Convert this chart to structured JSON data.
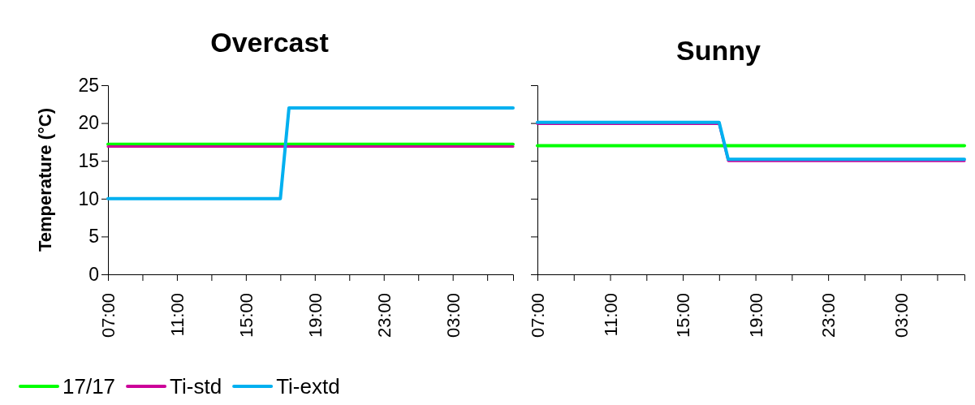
{
  "chart_data": [
    {
      "type": "line",
      "title": "Overcast",
      "ylabel": "Temperature (°C)",
      "categories": [
        "07:00",
        null,
        null,
        null,
        null,
        null,
        null,
        null,
        "11:00",
        null,
        null,
        null,
        null,
        null,
        null,
        null,
        "15:00",
        null,
        null,
        null,
        null,
        null,
        null,
        null,
        "19:00",
        null,
        null,
        null,
        null,
        null,
        null,
        null,
        "23:00",
        null,
        null,
        null,
        null,
        null,
        null,
        null,
        "03:00",
        null,
        null,
        null,
        null,
        null,
        null,
        null
      ],
      "ylim": [
        0,
        25
      ],
      "yticks": [
        0,
        5,
        10,
        15,
        20,
        25
      ],
      "legend": "bottom",
      "series": [
        {
          "name": "17/17",
          "color": "#00ff00",
          "values": [
            17.2,
            17.2,
            17.2,
            17.2,
            17.2,
            17.2,
            17.2,
            17.2,
            17.2,
            17.2,
            17.2,
            17.2,
            17.2,
            17.2,
            17.2,
            17.2,
            17.2,
            17.2,
            17.2,
            17.2,
            17.2,
            17.2,
            17.2,
            17.2,
            17.2,
            17.2,
            17.2,
            17.2,
            17.2,
            17.2,
            17.2,
            17.2,
            17.2,
            17.2,
            17.2,
            17.2,
            17.2,
            17.2,
            17.2,
            17.2,
            17.2,
            17.2,
            17.2,
            17.2,
            17.2,
            17.2,
            17.2,
            17.2
          ]
        },
        {
          "name": "Ti-std",
          "color": "#cc0099",
          "values": [
            16.9,
            16.9,
            16.9,
            16.9,
            16.9,
            16.9,
            16.9,
            16.9,
            16.9,
            16.9,
            16.9,
            16.9,
            16.9,
            16.9,
            16.9,
            16.9,
            16.9,
            16.9,
            16.9,
            16.9,
            16.9,
            16.9,
            16.9,
            16.9,
            16.9,
            16.9,
            16.9,
            16.9,
            16.9,
            16.9,
            16.9,
            16.9,
            16.9,
            16.9,
            16.9,
            16.9,
            16.9,
            16.9,
            16.9,
            16.9,
            16.9,
            16.9,
            16.9,
            16.9,
            16.9,
            16.9,
            16.9,
            16.9
          ]
        },
        {
          "name": "Ti-extd",
          "color": "#00b0f0",
          "values": [
            10,
            10,
            10,
            10,
            10,
            10,
            10,
            10,
            10,
            10,
            10,
            10,
            10,
            10,
            10,
            10,
            10,
            10,
            10,
            10,
            10,
            22,
            22,
            22,
            22,
            22,
            22,
            22,
            22,
            22,
            22,
            22,
            22,
            22,
            22,
            22,
            22,
            22,
            22,
            22,
            22,
            22,
            22,
            22,
            22,
            22,
            22,
            22
          ]
        }
      ]
    },
    {
      "type": "line",
      "title": "Sunny",
      "categories": [
        "07:00",
        null,
        null,
        null,
        null,
        null,
        null,
        null,
        "11:00",
        null,
        null,
        null,
        null,
        null,
        null,
        null,
        "15:00",
        null,
        null,
        null,
        null,
        null,
        null,
        null,
        "19:00",
        null,
        null,
        null,
        null,
        null,
        null,
        null,
        "23:00",
        null,
        null,
        null,
        null,
        null,
        null,
        null,
        "03:00",
        null,
        null,
        null,
        null,
        null,
        null,
        null
      ],
      "ylim": [
        0,
        25
      ],
      "yticks": [
        0,
        5,
        10,
        15,
        20,
        25
      ],
      "tick_labels": "x",
      "series": [
        {
          "color": "#00ff00",
          "values": [
            17,
            17,
            17,
            17,
            17,
            17,
            17,
            17,
            17,
            17,
            17,
            17,
            17,
            17,
            17,
            17,
            17,
            17,
            17,
            17,
            17,
            17,
            17,
            17,
            17,
            17,
            17,
            17,
            17,
            17,
            17,
            17,
            17,
            17,
            17,
            17,
            17,
            17,
            17,
            17,
            17,
            17,
            17,
            17,
            17,
            17,
            17,
            17
          ]
        },
        {
          "color": "#cc0099",
          "values": [
            19.9,
            19.9,
            19.9,
            19.9,
            19.9,
            19.9,
            19.9,
            19.9,
            19.9,
            19.9,
            19.9,
            19.9,
            19.9,
            19.9,
            19.9,
            19.9,
            19.9,
            19.9,
            19.9,
            19.9,
            19.9,
            15,
            15,
            15,
            15,
            15,
            15,
            15,
            15,
            15,
            15,
            15,
            15,
            15,
            15,
            15,
            15,
            15,
            15,
            15,
            15,
            15,
            15,
            15,
            15,
            15,
            15,
            15
          ]
        },
        {
          "color": "#00b0f0",
          "values": [
            20.1,
            20.1,
            20.1,
            20.1,
            20.1,
            20.1,
            20.1,
            20.1,
            20.1,
            20.1,
            20.1,
            20.1,
            20.1,
            20.1,
            20.1,
            20.1,
            20.1,
            20.1,
            20.1,
            20.1,
            20.1,
            15.2,
            15.2,
            15.2,
            15.2,
            15.2,
            15.2,
            15.2,
            15.2,
            15.2,
            15.2,
            15.2,
            15.2,
            15.2,
            15.2,
            15.2,
            15.2,
            15.2,
            15.2,
            15.2,
            15.2,
            15.2,
            15.2,
            15.2,
            15.2,
            15.2,
            15.2,
            15.2
          ]
        }
      ]
    }
  ]
}
